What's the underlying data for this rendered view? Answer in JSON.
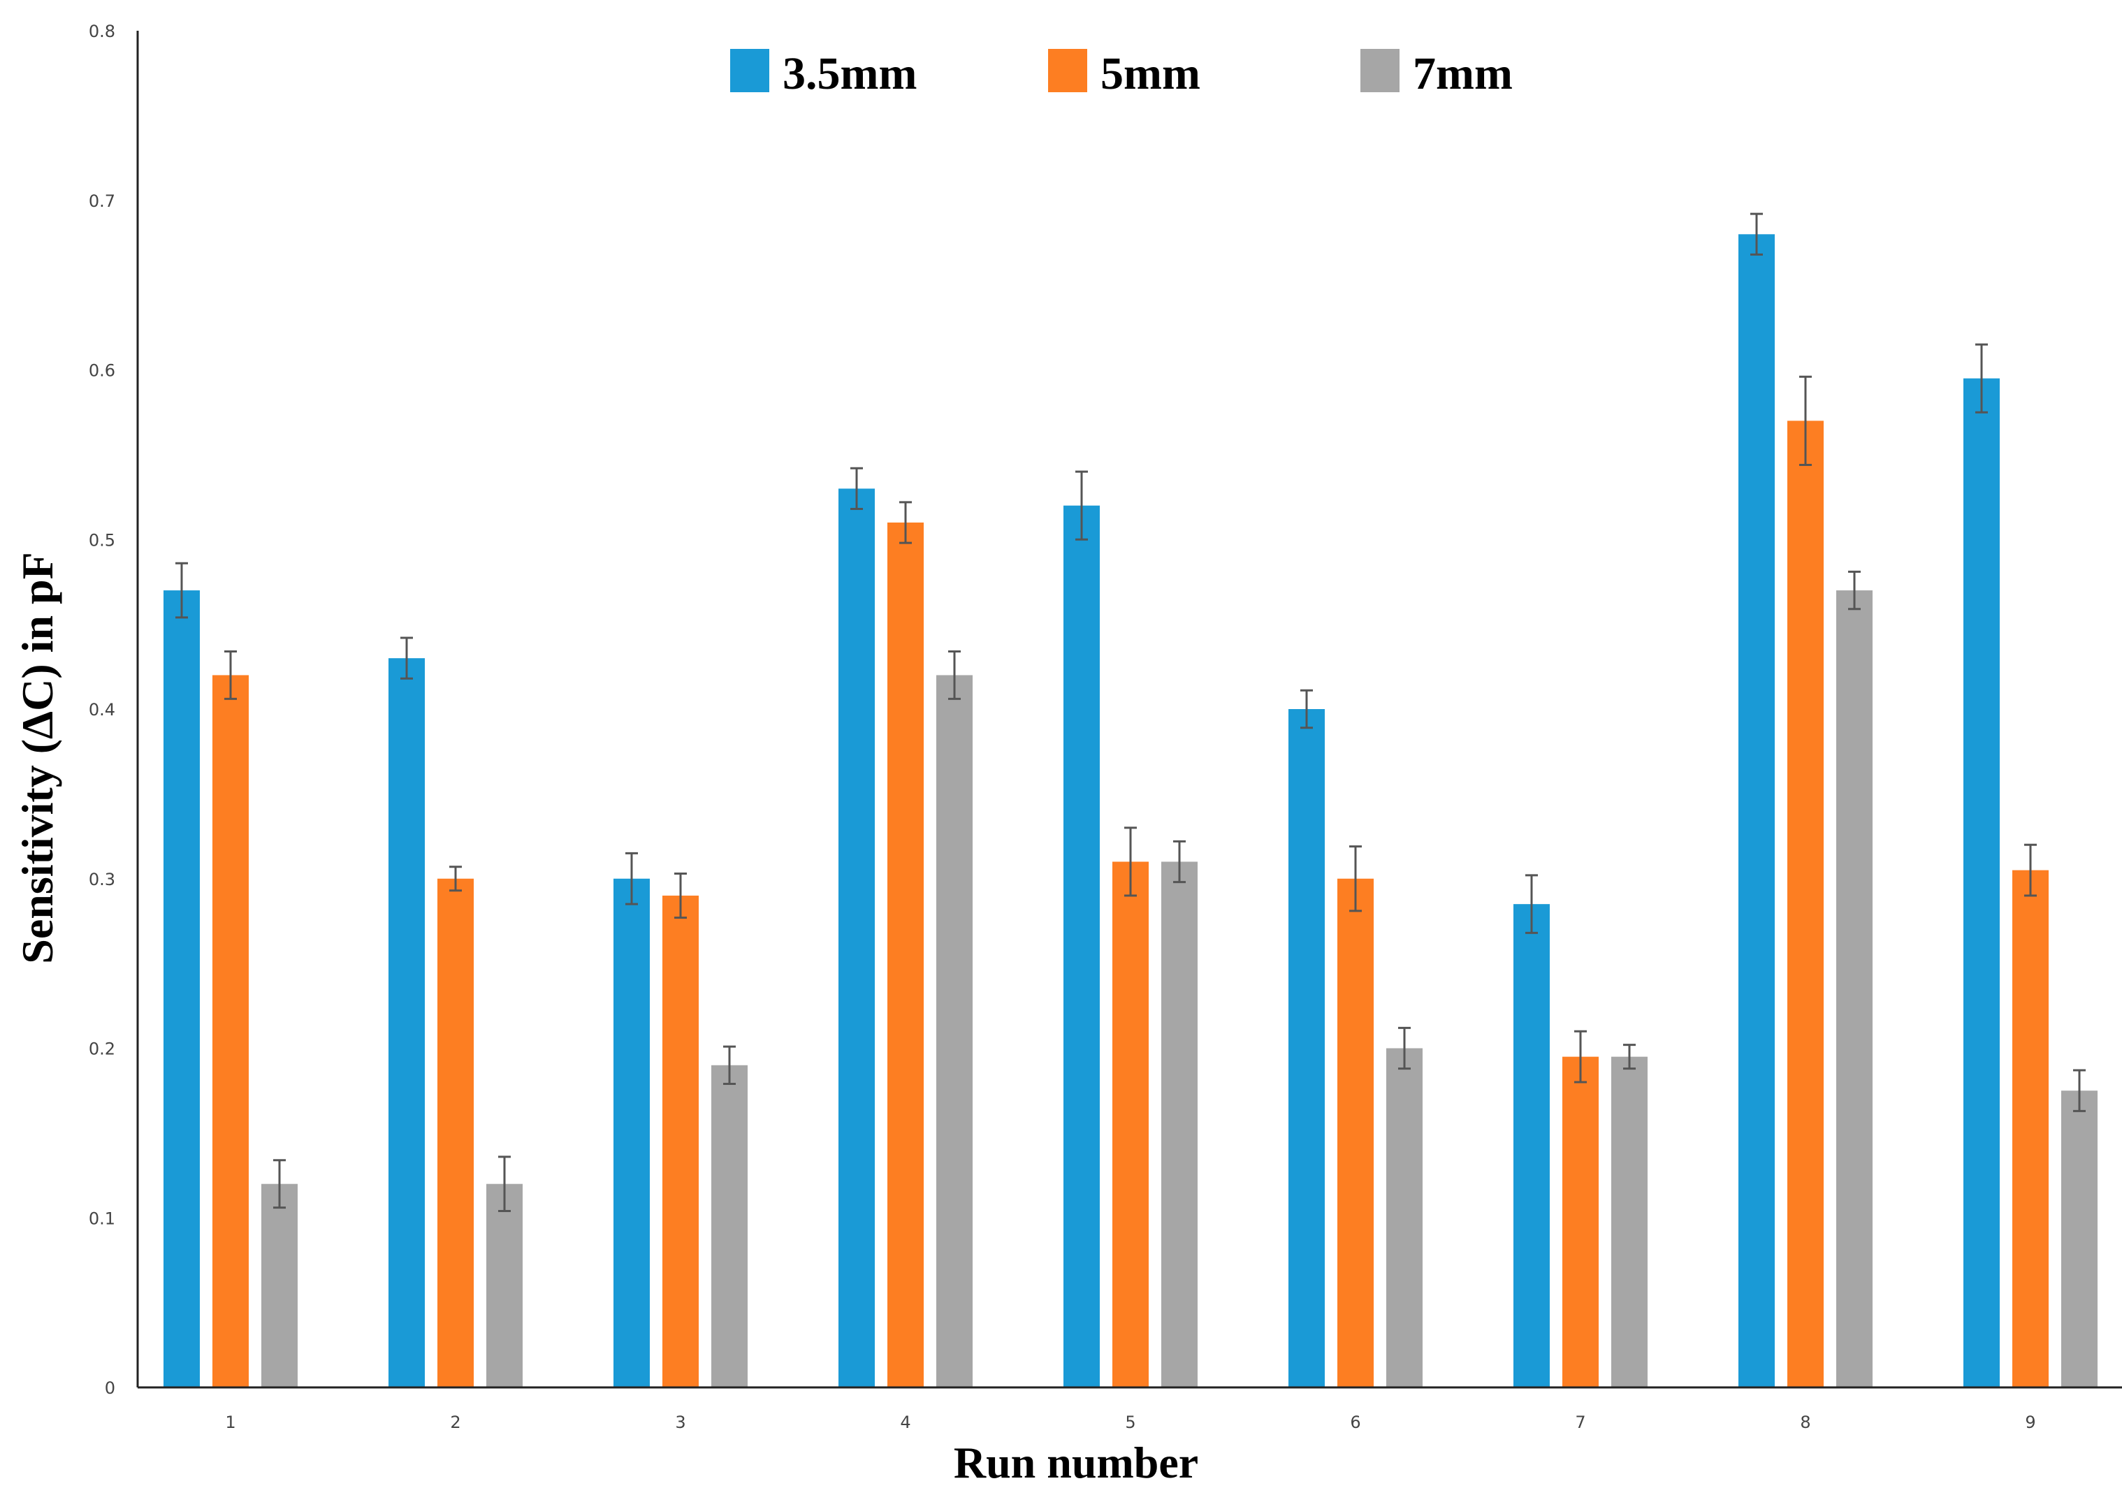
{
  "chart_data": {
    "type": "bar",
    "xlabel": "Run number",
    "ylabel": "Sensitivity (ΔC) in pF",
    "categories": [
      "1",
      "2",
      "3",
      "4",
      "5",
      "6",
      "7",
      "8",
      "9"
    ],
    "ylim": [
      0,
      0.8
    ],
    "yticks": [
      "0",
      "0.1",
      "0.2",
      "0.3",
      "0.4",
      "0.5",
      "0.6",
      "0.7",
      "0.8"
    ],
    "legend_position": "top-center",
    "grid": false,
    "series": [
      {
        "name": "3.5mm",
        "color": "#1a9ad6",
        "values": [
          0.47,
          0.43,
          0.3,
          0.53,
          0.52,
          0.4,
          0.285,
          0.68,
          0.595
        ],
        "errors": [
          0.016,
          0.012,
          0.015,
          0.012,
          0.02,
          0.011,
          0.017,
          0.012,
          0.02
        ]
      },
      {
        "name": "5mm",
        "color": "#fd7e22",
        "values": [
          0.42,
          0.3,
          0.29,
          0.51,
          0.31,
          0.3,
          0.195,
          0.57,
          0.305
        ],
        "errors": [
          0.014,
          0.007,
          0.013,
          0.012,
          0.02,
          0.019,
          0.015,
          0.026,
          0.015
        ]
      },
      {
        "name": "7mm",
        "color": "#a6a6a6",
        "values": [
          0.12,
          0.12,
          0.19,
          0.42,
          0.31,
          0.2,
          0.195,
          0.47,
          0.175
        ],
        "errors": [
          0.014,
          0.016,
          0.011,
          0.014,
          0.012,
          0.012,
          0.007,
          0.011,
          0.012
        ]
      }
    ]
  }
}
